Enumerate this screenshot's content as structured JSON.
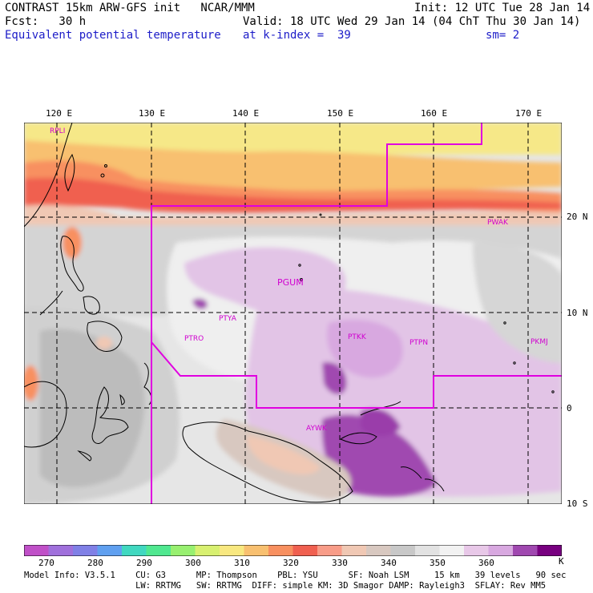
{
  "header": {
    "line1_left": "CONTRAST 15km ARW-GFS init   NCAR/MMM",
    "line1_right": "Init: 12 UTC Tue 28 Jan 14",
    "line2_left": "Fcst:   30 h",
    "line2_right": "Valid: 18 UTC Wed 29 Jan 14 (04 ChT Thu 30 Jan 14)",
    "field_name": "Equivalent potential temperature",
    "level": "at k-index =  39",
    "smoothing": "sm= 2"
  },
  "map": {
    "lon_labels": [
      "120 E",
      "130 E",
      "140 E",
      "150 E",
      "160 E",
      "170 E"
    ],
    "lat_labels": [
      "20 N",
      "10 N",
      "0",
      "10 S"
    ],
    "stations": [
      "RPLI",
      "PGUM",
      "PTYA",
      "PTRO",
      "PTKK",
      "PTPN",
      "PKMJ",
      "PWAK",
      "AYWK"
    ],
    "boundary_color": "#e000e0"
  },
  "colorbar": {
    "labels": [
      "270",
      "280",
      "290",
      "300",
      "310",
      "320",
      "330",
      "340",
      "350",
      "360"
    ],
    "unit": "K",
    "colors": [
      "#c050c8",
      "#a070dc",
      "#8080e6",
      "#60a0f0",
      "#40d8c0",
      "#50e890",
      "#98f070",
      "#d8f070",
      "#f8e880",
      "#f8c070",
      "#f89060",
      "#f06050",
      "#f89c88",
      "#f0c8b4",
      "#d8c8c0",
      "#c8c8c8",
      "#e2e2e2",
      "#f2f2f2",
      "#e8c8e8",
      "#d8a8e0",
      "#a048b0",
      "#780080"
    ]
  },
  "model_info": {
    "line1": "Model Info: V3.5.1    CU: G3      MP: Thompson    PBL: YSU      SF: Noah LSM     15 km   39 levels   90 sec",
    "line2": "                      LW: RRTMG   SW: RRTMG  DIFF: simple KM: 3D Smagor DAMP: Rayleigh3  SFLAY: Rev MM5"
  }
}
